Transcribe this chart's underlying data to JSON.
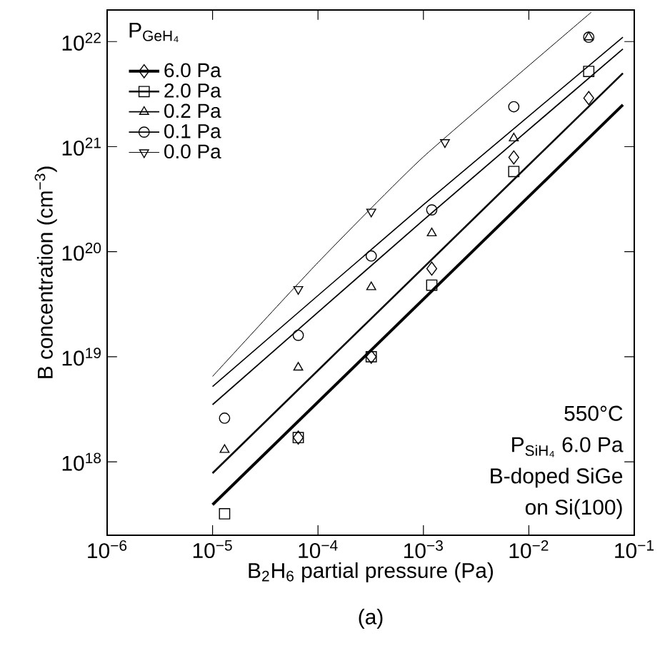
{
  "chart_data": {
    "type": "scatter",
    "xlabel": "B$_{2}$H$_{6}$ partial pressure (Pa)",
    "ylabel": "B concentration (cm$^{−3}$)",
    "legend_title": "P$_{GeH₄}$",
    "legend": "top left",
    "log": "xy",
    "xlim": [
      1e-06,
      0.1
    ],
    "ylim": [
      2e+17,
      2e+22
    ],
    "xticks": [
      {
        "value": 1e-06,
        "label": "10$^{−6}$"
      },
      {
        "value": 1e-05,
        "label": "10$^{−5}$"
      },
      {
        "value": 0.0001,
        "label": "10$^{−4}$"
      },
      {
        "value": 0.001,
        "label": "10$^{−3}$"
      },
      {
        "value": 0.01,
        "label": "10$^{−2}$"
      },
      {
        "value": 0.1,
        "label": "10$^{−1}$"
      }
    ],
    "yticks": [
      {
        "value": 1e+18,
        "label": "10$^{18}$"
      },
      {
        "value": 1e+19,
        "label": "10$^{19}$"
      },
      {
        "value": 1e+20,
        "label": "10$^{20}$"
      },
      {
        "value": 1e+21,
        "label": "10$^{21}$"
      },
      {
        "value": 1e+22,
        "label": "10$^{22}$"
      }
    ],
    "series": [
      {
        "name": "6.0 Pa",
        "marker": "diamond",
        "color": "#000000",
        "x": [
          6.5e-05,
          0.00032,
          0.0012,
          0.0072,
          0.037
        ],
        "values": [
          1.7e+18,
          1e+19,
          6.9e+19,
          7.9e+20,
          2.9e+21
        ]
      },
      {
        "name": "2.0 Pa",
        "marker": "square",
        "color": "#000000",
        "x": [
          1.3e-05,
          6.5e-05,
          0.00032,
          0.0012,
          0.0072,
          0.037
        ],
        "values": [
          3.2e+17,
          1.7e+18,
          1e+19,
          4.8e+19,
          5.8e+20,
          5.2e+21
        ]
      },
      {
        "name": "0.2 Pa",
        "marker": "triangle",
        "color": "#000000",
        "x": [
          1.3e-05,
          6.5e-05,
          0.00032,
          0.0012,
          0.0072,
          0.037
        ],
        "values": [
          1.3e+18,
          7.9e+18,
          4.6e+19,
          1.5e+20,
          1.2e+21,
          1.1e+22
        ]
      },
      {
        "name": "0.1 Pa",
        "marker": "circle",
        "color": "#000000",
        "x": [
          1.3e-05,
          6.5e-05,
          0.00032,
          0.0012,
          0.0072,
          0.037
        ],
        "values": [
          2.6e+18,
          1.6e+19,
          9.1e+19,
          2.5e+20,
          2.4e+21,
          1.1e+22
        ]
      },
      {
        "name": "0.0 Pa",
        "marker": "triangle down",
        "color": "#000000",
        "x": [
          6.5e-05,
          0.00032,
          0.0016
        ],
        "values": [
          4.4e+19,
          2.4e+20,
          1.1e+21
        ]
      },
      {
        "type": "line",
        "color": "#000000",
        "x": [
          1e-05,
          0.078
        ],
        "values": [
          3.9e+17,
          2.5e+21
        ]
      },
      {
        "type": "line",
        "color": "#000000",
        "x": [
          1e-05,
          0.078
        ],
        "values": [
          7.8e+17,
          5e+21
        ]
      },
      {
        "type": "line",
        "color": "#000000",
        "x": [
          1e-05,
          0.001,
          0.078
        ],
        "values": [
          3.5e+18,
          2e+20,
          8.5e+21
        ]
      },
      {
        "type": "line",
        "color": "#000000",
        "x": [
          1e-05,
          0.001,
          0.078
        ],
        "values": [
          5.2e+18,
          2.8e+20,
          1.1e+22
        ]
      },
      {
        "type": "line",
        "color": "#000000",
        "x": [
          1e-05,
          0.0001,
          0.001,
          0.039
        ],
        "values": [
          6.5e+18,
          7.9e+19,
          8e+20,
          1.9e+22
        ]
      }
    ],
    "annotations": [
      "550°C",
      "P$_{SiH₄}$ 6.0 Pa",
      "B-doped SiGe",
      "on Si(100)",
      "(a)"
    ]
  }
}
